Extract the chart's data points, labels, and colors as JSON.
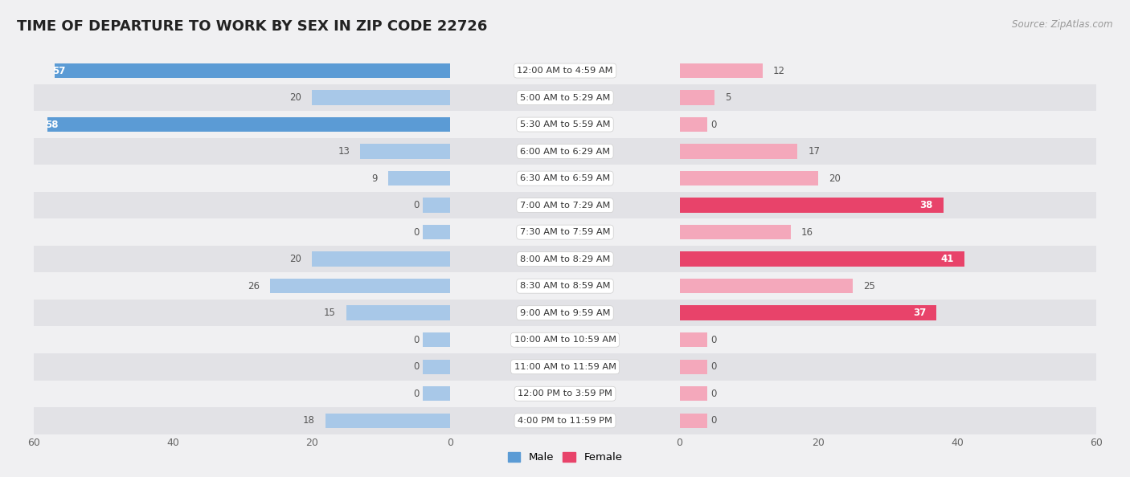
{
  "title": "TIME OF DEPARTURE TO WORK BY SEX IN ZIP CODE 22726",
  "source": "Source: ZipAtlas.com",
  "categories": [
    "12:00 AM to 4:59 AM",
    "5:00 AM to 5:29 AM",
    "5:30 AM to 5:59 AM",
    "6:00 AM to 6:29 AM",
    "6:30 AM to 6:59 AM",
    "7:00 AM to 7:29 AM",
    "7:30 AM to 7:59 AM",
    "8:00 AM to 8:29 AM",
    "8:30 AM to 8:59 AM",
    "9:00 AM to 9:59 AM",
    "10:00 AM to 10:59 AM",
    "11:00 AM to 11:59 AM",
    "12:00 PM to 3:59 PM",
    "4:00 PM to 11:59 PM"
  ],
  "male": [
    57,
    20,
    58,
    13,
    9,
    0,
    0,
    20,
    26,
    15,
    0,
    0,
    0,
    18
  ],
  "female": [
    12,
    5,
    0,
    17,
    20,
    38,
    16,
    41,
    25,
    37,
    0,
    0,
    0,
    0
  ],
  "male_color_strong": "#5B9BD5",
  "male_color_light": "#A8C8E8",
  "female_color_strong": "#E8436A",
  "female_color_light": "#F4A8BB",
  "bar_height": 0.55,
  "xlim": 60,
  "bg_color": "#f0f0f2",
  "row_even_color": "#f0f0f2",
  "row_odd_color": "#e2e2e6",
  "title_fontsize": 13,
  "axis_tick_fontsize": 9,
  "strong_threshold_male": 50,
  "strong_threshold_female": 35,
  "stub_size": 4
}
